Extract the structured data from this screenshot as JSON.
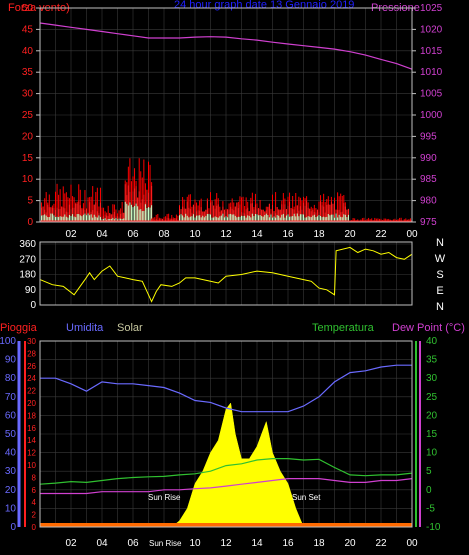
{
  "colors": {
    "background": "#000000",
    "grid": "#3a3a3a",
    "axis": "#c0c0c0",
    "wind": "#ff2020",
    "wind_gust": "#ff0000",
    "wind_avg": "#c8ffc8",
    "pressure": "#d040d0",
    "direction": "#ffff00",
    "humidity": "#6a6aff",
    "temperature": "#30c030",
    "dewpoint": "#d040d0",
    "solar": "#ffff00",
    "rain": "#ff2020",
    "title": "#2020ff",
    "white": "#ffffff",
    "tempaxis": "#30c030",
    "dewaxis": "#d040d0"
  },
  "header": {
    "left_label": "Forza vento)",
    "title": "24 hour graph date  13 Gennaio 2019",
    "right_label": "Pressione"
  },
  "panel3_labels": {
    "rain": "Pioggia",
    "humidity": "Umidita",
    "solar": "Solar",
    "temperature": "Temperatura",
    "dewpoint": "Dew Point (°C)"
  },
  "direction_letters": [
    "N",
    "W",
    "S",
    "E",
    "N"
  ],
  "annotations": {
    "sunrise": "Sun Rise",
    "sunset": "Sun Set",
    "sunrise_tick": "Sun Rise"
  },
  "chart_data": [
    {
      "type": "line",
      "name": "wind-pressure",
      "x_ticks": [
        "02",
        "04",
        "06",
        "08",
        "10",
        "12",
        "14",
        "16",
        "18",
        "20",
        "22",
        "00"
      ],
      "left_axis": {
        "ticks": [
          0,
          5,
          10,
          15,
          20,
          25,
          30,
          35,
          40,
          45,
          50
        ],
        "ylim": [
          0,
          50
        ]
      },
      "right_axis": {
        "ticks": [
          975,
          980,
          985,
          990,
          995,
          1000,
          1005,
          1010,
          1015,
          1020,
          1025
        ],
        "ylim": [
          975,
          1025
        ]
      },
      "pressure": {
        "x": [
          0,
          1,
          2,
          3,
          4,
          5,
          6,
          7,
          8,
          9,
          10,
          11,
          12,
          13,
          14,
          15,
          16,
          17,
          18,
          19,
          20,
          21,
          22,
          23,
          24
        ],
        "y": [
          1021.5,
          1021,
          1020.5,
          1020,
          1019.5,
          1019,
          1018.5,
          1018,
          1018,
          1018,
          1018.2,
          1018.3,
          1018.2,
          1017.8,
          1017.5,
          1017,
          1016.6,
          1016.2,
          1015.8,
          1015.4,
          1014.8,
          1014,
          1013,
          1012,
          1010.7
        ]
      },
      "wind_segments": [
        {
          "from": 0.0,
          "to": 4.0,
          "avg": 2,
          "gust": 5,
          "peak": 9
        },
        {
          "from": 4.0,
          "to": 5.5,
          "avg": 1,
          "gust": 3,
          "peak": 5
        },
        {
          "from": 5.5,
          "to": 7.2,
          "avg": 5,
          "gust": 9,
          "peak": 15
        },
        {
          "from": 7.2,
          "to": 9.0,
          "avg": 0,
          "gust": 1,
          "peak": 2
        },
        {
          "from": 9.0,
          "to": 20.0,
          "avg": 2,
          "gust": 5,
          "peak": 7
        },
        {
          "from": 20.0,
          "to": 24.0,
          "avg": 0,
          "gust": 0,
          "peak": 1
        }
      ]
    },
    {
      "type": "line",
      "name": "wind-direction",
      "x_ticks": [
        "02",
        "04",
        "06",
        "08",
        "10",
        "12",
        "14",
        "16",
        "18",
        "20",
        "22",
        "00"
      ],
      "left_axis": {
        "ticks": [
          0,
          90,
          180,
          270,
          360
        ],
        "ylim": [
          0,
          360
        ]
      },
      "x": [
        0,
        0.8,
        1.5,
        2.2,
        2.9,
        3.2,
        3.5,
        4.0,
        4.5,
        5.0,
        5.5,
        6.0,
        6.6,
        7.2,
        7.5,
        7.8,
        8.5,
        9.0,
        9.4,
        10,
        11,
        11.5,
        12,
        13,
        14,
        15,
        16,
        17,
        17.5,
        18,
        18.5,
        19.0,
        19.1,
        20,
        20.5,
        21,
        21.5,
        22,
        22.5,
        23,
        23.5,
        24
      ],
      "y": [
        150,
        120,
        110,
        60,
        150,
        190,
        150,
        200,
        230,
        170,
        160,
        150,
        140,
        20,
        80,
        120,
        110,
        130,
        160,
        160,
        140,
        130,
        170,
        180,
        200,
        190,
        170,
        150,
        140,
        100,
        90,
        60,
        320,
        340,
        310,
        330,
        320,
        300,
        310,
        280,
        270,
        300
      ]
    },
    {
      "type": "line",
      "name": "temperature-humidity-solar",
      "x_ticks": [
        "02",
        "04",
        "06",
        "08",
        "10",
        "12",
        "14",
        "16",
        "18",
        "20",
        "22",
        "00"
      ],
      "humidity_axis": {
        "ticks": [
          0,
          10,
          20,
          30,
          40,
          50,
          60,
          70,
          80,
          90,
          100
        ],
        "ylim": [
          0,
          100
        ]
      },
      "rain_axis": {
        "ticks": [
          0,
          2,
          4,
          6,
          8,
          10,
          12,
          14,
          16,
          18,
          20,
          22,
          24,
          26,
          28,
          30
        ],
        "ylim": [
          0,
          30
        ]
      },
      "temp_axis": {
        "ticks": [
          -10,
          -5,
          0,
          5,
          10,
          15,
          20,
          25,
          30,
          35,
          40
        ],
        "ylim": [
          -10,
          40
        ]
      },
      "humidity": {
        "x": [
          0,
          1,
          2,
          3,
          4,
          5,
          6,
          7,
          8,
          9,
          10,
          11,
          12,
          13,
          14,
          15,
          16,
          17,
          18,
          19,
          20,
          21,
          22,
          23,
          24
        ],
        "y": [
          80,
          80,
          77,
          73,
          78,
          77,
          77,
          76,
          75,
          72,
          68,
          67,
          64,
          62,
          62,
          62,
          62,
          65,
          70,
          78,
          83,
          84,
          86,
          87,
          87
        ]
      },
      "temperature": {
        "x": [
          0,
          1,
          2,
          3,
          4,
          5,
          6,
          7,
          8,
          9,
          10,
          11,
          12,
          13,
          14,
          15,
          16,
          17,
          18,
          19,
          20,
          21,
          22,
          23,
          24
        ],
        "y": [
          1.5,
          1.8,
          2.2,
          2.0,
          2.5,
          3.0,
          3.3,
          3.5,
          3.6,
          4.0,
          4.3,
          5.0,
          6.5,
          7.0,
          8.0,
          8.4,
          8.4,
          8.0,
          8.2,
          6.0,
          4.0,
          3.8,
          4.0,
          4.0,
          4.5
        ]
      },
      "dewpoint": {
        "x": [
          0,
          1,
          2,
          3,
          4,
          5,
          6,
          7,
          8,
          9,
          10,
          11,
          12,
          13,
          14,
          15,
          16,
          17,
          18,
          19,
          20,
          21,
          22,
          23,
          24
        ],
        "y": [
          -1.0,
          -1.0,
          -1.0,
          -1.0,
          -0.5,
          -0.5,
          -0.5,
          -0.5,
          0.0,
          0.0,
          0.3,
          0.5,
          1.0,
          1.5,
          2.0,
          2.5,
          3.0,
          3.0,
          3.0,
          2.5,
          2.0,
          2.0,
          2.5,
          2.5,
          3.0
        ]
      },
      "solar": {
        "x": [
          0,
          8.5,
          9.0,
          9.5,
          10.0,
          10.5,
          11.0,
          11.5,
          12.0,
          12.3,
          12.6,
          13.0,
          13.5,
          14.0,
          14.3,
          14.6,
          15.0,
          15.5,
          16.0,
          16.5,
          17.0,
          24
        ],
        "y": [
          0,
          0,
          1,
          3,
          7,
          9,
          12,
          14,
          19,
          20,
          15,
          11,
          11,
          13,
          15,
          17,
          12,
          9,
          7,
          3,
          0,
          0
        ]
      },
      "rain_total": 0
    }
  ]
}
